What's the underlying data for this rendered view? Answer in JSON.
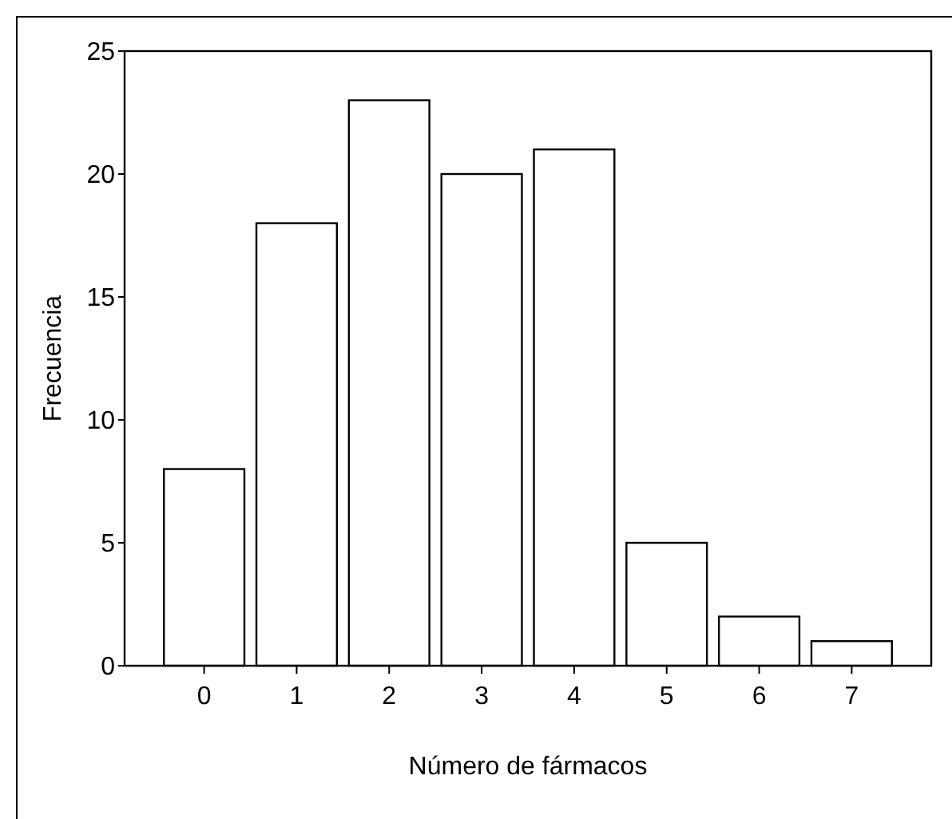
{
  "chart_data": {
    "type": "bar",
    "xlabel": "Número de fármacos",
    "ylabel": "Frecuencia",
    "categories": [
      "0",
      "1",
      "2",
      "3",
      "4",
      "5",
      "6",
      "7"
    ],
    "values": [
      8,
      18,
      23,
      20,
      21,
      5,
      2,
      1
    ],
    "color": "#ffffff",
    "ylim": [
      0,
      25
    ],
    "yticks": [
      0,
      5,
      10,
      15,
      20,
      25
    ],
    "grid": false
  }
}
